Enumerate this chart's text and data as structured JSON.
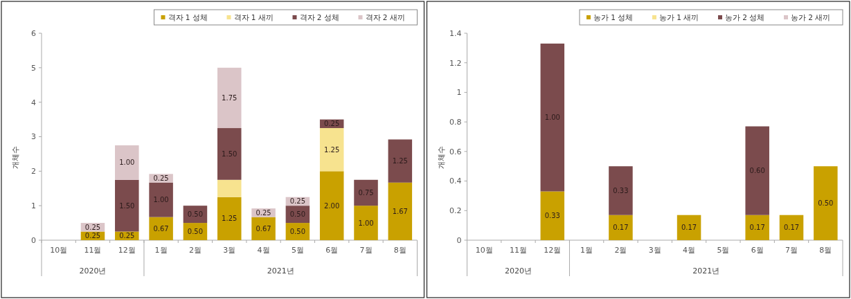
{
  "chart_data": [
    {
      "type": "bar",
      "stacked": true,
      "ylabel": "개체수",
      "categories": [
        "10월",
        "11월",
        "12월",
        "1월",
        "2월",
        "3월",
        "4월",
        "5월",
        "6월",
        "7월",
        "8월"
      ],
      "ylim": [
        0,
        6
      ],
      "yticks": [
        0,
        1,
        2,
        3,
        4,
        5,
        6
      ],
      "grid": false,
      "legend": "top right",
      "annotations": [
        "2020년",
        "2021년"
      ],
      "series": [
        {
          "name": "격자 1 성체",
          "color": "#c9a100",
          "values": [
            null,
            0.25,
            0.25,
            0.67,
            0.5,
            1.25,
            0.67,
            0.5,
            2.0,
            1.0,
            1.67
          ],
          "value_labels": [
            null,
            "0.25",
            "0.25",
            "0.67",
            "0.50",
            "1.25",
            "0.67",
            "0.50",
            "2.00",
            "1.00",
            "1.67"
          ]
        },
        {
          "name": "격자 1 새끼",
          "color": "#f7e38f",
          "values": [
            null,
            null,
            null,
            null,
            null,
            0.5,
            null,
            null,
            1.25,
            null,
            null
          ],
          "value_labels": [
            null,
            null,
            null,
            null,
            null,
            null,
            null,
            null,
            "1.25",
            null,
            null
          ]
        },
        {
          "name": "격자 2 성체",
          "color": "#7b4b4d",
          "values": [
            null,
            null,
            1.5,
            1.0,
            0.5,
            1.5,
            null,
            0.5,
            0.25,
            0.75,
            1.25
          ],
          "value_labels": [
            null,
            null,
            "1.50",
            "1.00",
            "0.50",
            "1.50",
            null,
            "0.50",
            "0.25",
            "0.75",
            "1.25"
          ]
        },
        {
          "name": "격자 2 새끼",
          "color": "#dbc5c8",
          "values": [
            null,
            0.25,
            1.0,
            0.25,
            null,
            1.75,
            0.25,
            0.25,
            null,
            null,
            null
          ],
          "value_labels": [
            null,
            "0.25",
            "1.00",
            "0.25",
            null,
            "1.75",
            "0.25",
            "0.25",
            null,
            null,
            null
          ]
        }
      ]
    },
    {
      "type": "bar",
      "stacked": true,
      "ylabel": "개체수",
      "categories": [
        "10월",
        "11월",
        "12월",
        "1월",
        "2월",
        "3월",
        "4월",
        "5월",
        "6월",
        "7월",
        "8월"
      ],
      "ylim": [
        0,
        1.4
      ],
      "yticks": [
        0,
        0.2,
        0.4,
        0.6,
        0.8,
        1,
        1.2,
        1.4
      ],
      "grid": false,
      "legend": "top right",
      "annotations": [
        "2020년",
        "2021년"
      ],
      "series": [
        {
          "name": "농가 1 성체",
          "color": "#c9a100",
          "values": [
            null,
            null,
            0.33,
            null,
            0.17,
            null,
            0.17,
            null,
            0.17,
            0.17,
            0.5
          ],
          "value_labels": [
            null,
            null,
            "0.33",
            null,
            "0.17",
            null,
            "0.17",
            null,
            "0.17",
            "0.17",
            "0.50"
          ]
        },
        {
          "name": "농가 1 새끼",
          "color": "#f7e38f",
          "values": [
            null,
            null,
            null,
            null,
            null,
            null,
            null,
            null,
            null,
            null,
            null
          ]
        },
        {
          "name": "농가 2 성체",
          "color": "#7b4b4d",
          "values": [
            null,
            null,
            1.0,
            null,
            0.33,
            null,
            null,
            null,
            0.6,
            null,
            null
          ],
          "value_labels": [
            null,
            null,
            "1.00",
            null,
            "0.33",
            null,
            null,
            null,
            "0.60",
            null,
            null
          ]
        },
        {
          "name": "농가 2 새끼",
          "color": "#dbc5c8",
          "values": [
            null,
            null,
            null,
            null,
            null,
            null,
            null,
            null,
            null,
            null,
            null
          ]
        }
      ]
    }
  ]
}
